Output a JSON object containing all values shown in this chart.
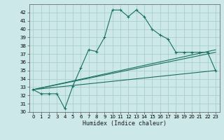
{
  "xlabel": "Humidex (Indice chaleur)",
  "background_color": "#cce8e8",
  "grid_color": "#aacece",
  "line_color": "#1a7060",
  "xlim": [
    -0.5,
    23.5
  ],
  "ylim": [
    30,
    43
  ],
  "xticks": [
    0,
    1,
    2,
    3,
    4,
    5,
    6,
    7,
    8,
    9,
    10,
    11,
    12,
    13,
    14,
    15,
    16,
    17,
    18,
    19,
    20,
    21,
    22,
    23
  ],
  "yticks": [
    30,
    31,
    32,
    33,
    34,
    35,
    36,
    37,
    38,
    39,
    40,
    41,
    42
  ],
  "series1_x": [
    0,
    1,
    2,
    3,
    4,
    5,
    6,
    7,
    8,
    9,
    10,
    11,
    12,
    13,
    14,
    15,
    16,
    17,
    18,
    19,
    20,
    21,
    22,
    23
  ],
  "series1_y": [
    32.7,
    32.2,
    32.2,
    32.2,
    30.4,
    33.1,
    35.3,
    37.5,
    37.3,
    39.0,
    42.3,
    42.3,
    41.5,
    42.3,
    41.5,
    40.0,
    39.3,
    38.8,
    37.2,
    37.2,
    37.2,
    37.2,
    37.2,
    35.0
  ],
  "line2_x0": 0,
  "line2_y0": 32.7,
  "line2_x1": 23,
  "line2_y1": 35.0,
  "line3_x0": 0,
  "line3_y0": 32.7,
  "line3_x1": 23,
  "line3_y1": 37.2,
  "line4_x0": 0,
  "line4_y0": 32.7,
  "line4_x1": 23,
  "line4_y1": 37.5,
  "dot_line_x0": 0,
  "dot_line_y0": 32.7,
  "dot_line_x1": 23,
  "dot_line_y1": 37.2
}
